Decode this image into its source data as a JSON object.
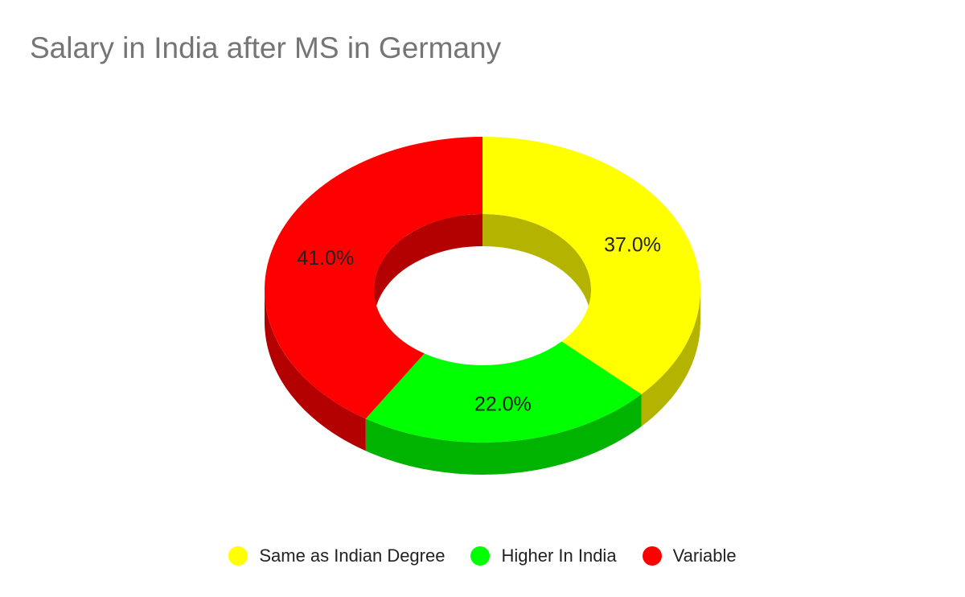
{
  "chart_data": {
    "type": "pie",
    "variant": "3d-donut",
    "title": "Salary in India after MS in Germany",
    "slices": [
      {
        "label": "Same as Indian Degree",
        "value": 37.0,
        "value_label": "37.0%",
        "color": "#ffff00"
      },
      {
        "label": "Higher In India",
        "value": 22.0,
        "value_label": "22.0%",
        "color": "#00ff00"
      },
      {
        "label": "Variable",
        "value": 41.0,
        "value_label": "41.0%",
        "color": "#ff0000"
      }
    ],
    "legend_position": "bottom"
  }
}
